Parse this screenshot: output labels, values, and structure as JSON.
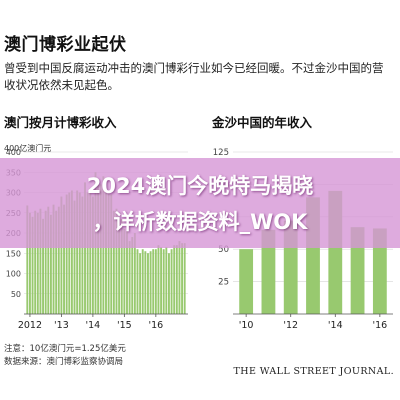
{
  "header": {
    "title": "澳门博彩业起伏",
    "subtitle": "曾受到中国反腐运动冲击的澳门博彩行业如今已经回暖。不过金沙中国的营收状况依然未见起色。"
  },
  "colors": {
    "bar": "#98c96f",
    "overlay": "#d696d6",
    "grid": "#d6d6d6",
    "axis": "#555555"
  },
  "chart_data": [
    {
      "type": "bar",
      "title": "澳门按月计博彩收入",
      "unit_label": "400亿澳门元",
      "ylim": [
        0,
        400
      ],
      "yticks": [
        "400",
        "350",
        "300",
        "250",
        "200",
        "150",
        "100",
        "50",
        "0"
      ],
      "tick_labels": [
        "2012",
        "'13",
        "'14",
        "'15",
        "'16"
      ],
      "x": [
        "2011-12",
        "2012-01",
        "2012-02",
        "2012-03",
        "2012-04",
        "2012-05",
        "2012-06",
        "2012-07",
        "2012-08",
        "2012-09",
        "2012-10",
        "2012-11",
        "2012-12",
        "2013-01",
        "2013-02",
        "2013-03",
        "2013-04",
        "2013-05",
        "2013-06",
        "2013-07",
        "2013-08",
        "2013-09",
        "2013-10",
        "2013-11",
        "2013-12",
        "2014-01",
        "2014-02",
        "2014-03",
        "2014-04",
        "2014-05",
        "2014-06",
        "2014-07",
        "2014-08",
        "2014-09",
        "2014-10",
        "2014-11",
        "2014-12",
        "2015-01",
        "2015-02",
        "2015-03",
        "2015-04",
        "2015-05",
        "2015-06",
        "2015-07",
        "2015-08",
        "2015-09",
        "2015-10",
        "2015-11",
        "2015-12",
        "2016-01",
        "2016-02",
        "2016-03",
        "2016-04",
        "2016-05",
        "2016-06",
        "2016-07",
        "2016-08",
        "2016-09",
        "2016-10",
        "2016-11",
        "2016-12"
      ],
      "values": [
        268,
        250,
        240,
        255,
        250,
        260,
        235,
        255,
        265,
        245,
        270,
        255,
        265,
        290,
        270,
        295,
        300,
        305,
        280,
        305,
        300,
        290,
        325,
        300,
        310,
        290,
        350,
        320,
        320,
        340,
        300,
        300,
        295,
        255,
        260,
        240,
        235,
        210,
        205,
        180,
        190,
        200,
        160,
        150,
        160,
        155,
        150,
        155,
        160,
        160,
        170,
        165,
        160,
        165,
        150,
        160,
        170,
        170,
        180,
        175,
        175
      ]
    },
    {
      "type": "bar",
      "title": "金沙中国的年收入",
      "ylim": [
        0,
        125
      ],
      "yticks": [
        "125",
        "100",
        "75",
        "50",
        "25"
      ],
      "tick_labels": [
        "'10",
        "'12",
        "'14",
        "'16"
      ],
      "categories": [
        "2010",
        "2011",
        "2012",
        "2013",
        "2014",
        "2015",
        "2016"
      ],
      "values": [
        50,
        65,
        72,
        90,
        95,
        67,
        66
      ]
    }
  ],
  "footer": {
    "note": "注意：10亿澳门元=1.25亿美元",
    "source": "数据来源：澳门博彩监察协调局",
    "credit": "THE WALL STREET JOURNAL."
  },
  "overlay": {
    "line1": "2024澳门今晚特马揭晓",
    "line2": "，详析数据资料_WOK"
  }
}
